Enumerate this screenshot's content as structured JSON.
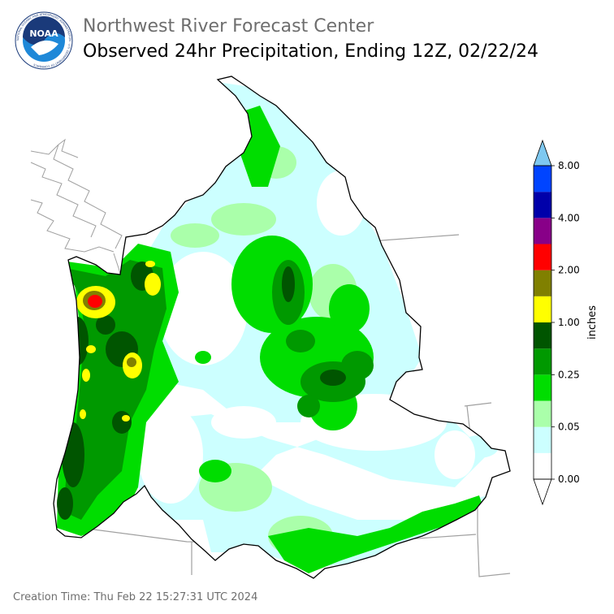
{
  "header": {
    "org_title": "Northwest River Forecast Center",
    "map_title": "Observed 24hr Precipitation, Ending 12Z, 02/22/24"
  },
  "logo": {
    "text": "NOAA",
    "ring_text": "NATIONAL OCEANIC AND ATMOSPHERIC ADMINISTRATION · U.S. DEPARTMENT OF COMMERCE",
    "colors": {
      "dark_blue": "#1a3a7a",
      "light_blue": "#1e88d8",
      "white": "#ffffff"
    }
  },
  "legend": {
    "unit_label": "inches",
    "tick_labels": [
      "0.00",
      "0.05",
      "0.25",
      "1.00",
      "2.00",
      "4.00",
      "8.00"
    ],
    "bins": [
      {
        "color": "#ffffff"
      },
      {
        "color": "#ccffff"
      },
      {
        "color": "#aaffaa"
      },
      {
        "color": "#00dd00"
      },
      {
        "color": "#009900"
      },
      {
        "color": "#005500"
      },
      {
        "color": "#ffff00"
      },
      {
        "color": "#808000"
      },
      {
        "color": "#ff0000"
      },
      {
        "color": "#880088"
      },
      {
        "color": "#0000aa"
      },
      {
        "color": "#0044ff"
      }
    ],
    "over_color": "#7ec8f0",
    "under_color": "#ffffff"
  },
  "map": {
    "colors": {
      "boundary": "#000000",
      "state_line": "#a0a0a0",
      "coast": "#a0a0a0",
      "white": "#ffffff",
      "light_cyan": "#ccffff",
      "light_green": "#aaffaa",
      "green": "#00dd00",
      "mid_green": "#009900",
      "dark_green": "#005500",
      "yellow": "#ffff00",
      "olive": "#808000",
      "red": "#ff0000"
    }
  },
  "footer": {
    "creation_time": "Creation Time: Thu Feb 22 15:27:31 UTC 2024"
  }
}
